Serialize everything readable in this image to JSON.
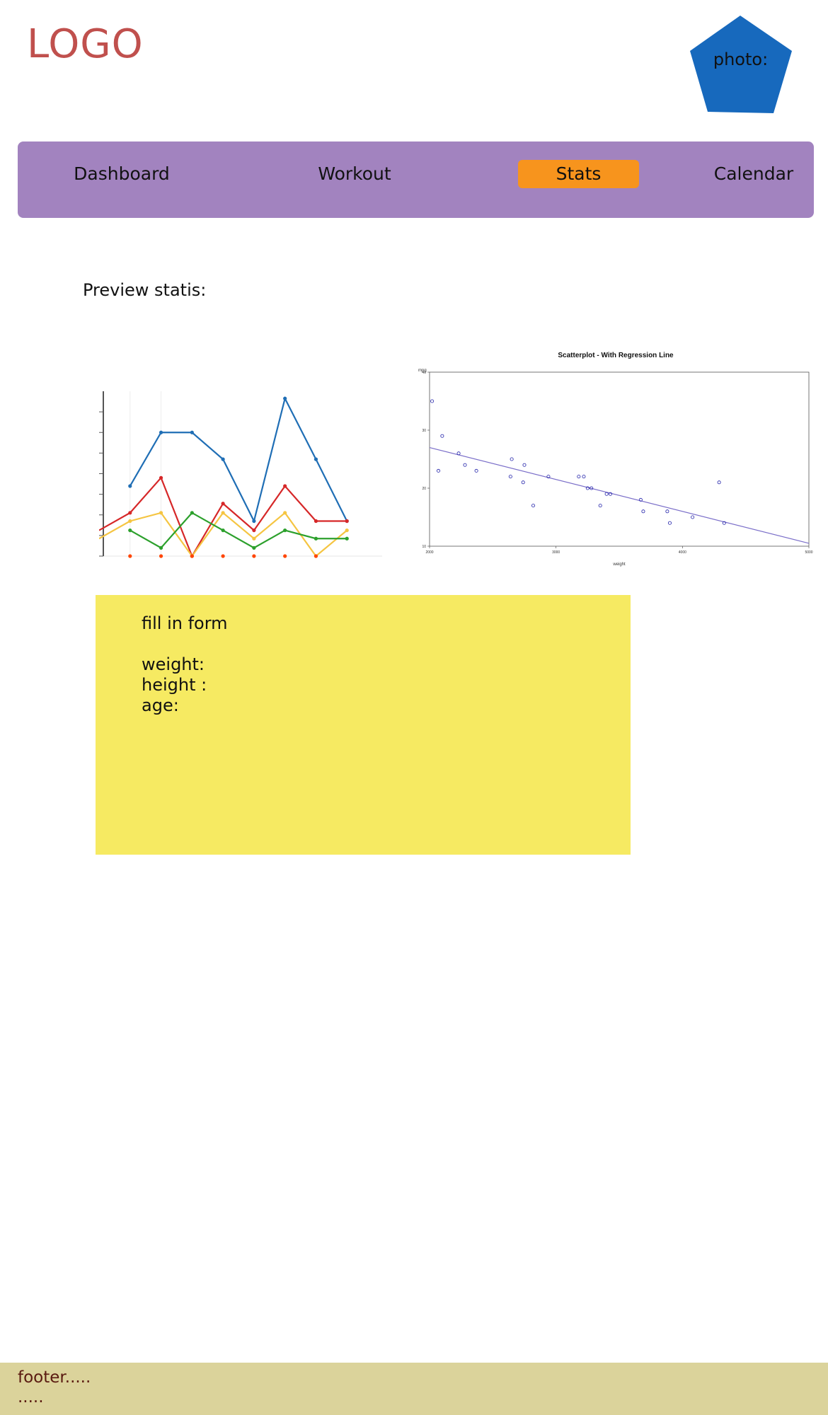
{
  "header": {
    "logo": "LOGO",
    "photo_label": "photo:"
  },
  "nav": {
    "items": [
      {
        "label": "Dashboard",
        "active": false
      },
      {
        "label": "Workout",
        "active": false
      },
      {
        "label": "Stats",
        "active": true
      },
      {
        "label": "Calendar",
        "active": false
      }
    ]
  },
  "main": {
    "preview_title": "Preview  statis:"
  },
  "chart_data": [
    {
      "type": "line",
      "title": "",
      "xlabel": "",
      "ylabel": "",
      "ylim": [
        0,
        16
      ],
      "yticks": [
        "0",
        "2",
        "4",
        "6",
        "8",
        "10",
        "12",
        "14"
      ],
      "x": [
        0,
        1,
        2,
        3,
        4,
        5,
        6,
        7,
        8,
        9
      ],
      "grid": false,
      "series": [
        {
          "color": "#1f6eb5",
          "values": [
            null,
            6.8,
            12,
            12,
            9.4,
            3.4,
            15.3,
            9.4,
            3.4,
            null
          ]
        },
        {
          "color": "#d62728",
          "values": [
            2.5,
            4.2,
            7.6,
            0,
            5.1,
            2.5,
            6.8,
            3.4,
            3.4,
            null
          ]
        },
        {
          "color": "#f5c542",
          "values": [
            1.7,
            3.4,
            4.2,
            0,
            4.2,
            1.7,
            4.2,
            0,
            2.5,
            null
          ]
        },
        {
          "color": "#2ca02c",
          "values": [
            null,
            2.5,
            0.8,
            4.2,
            2.5,
            0.8,
            2.5,
            1.7,
            1.7,
            null
          ]
        },
        {
          "color": "#ff4500",
          "values": [
            null,
            0,
            0,
            0,
            0,
            0,
            0,
            0,
            null,
            null
          ]
        }
      ]
    },
    {
      "type": "scatter",
      "title": "Scatterplot - With Regression Line",
      "xlabel": "weight",
      "ylabel": "mpg",
      "xlim": [
        2000,
        5000
      ],
      "ylim": [
        10,
        40
      ],
      "xticks": [
        "2000",
        "3000",
        "4000",
        "5000"
      ],
      "yticks": [
        "10",
        "20",
        "30",
        "40"
      ],
      "point_color": "#2222aa",
      "regression": {
        "x": [
          2000,
          5000
        ],
        "y": [
          27,
          10.5
        ],
        "color": "#7b6fc9"
      },
      "points": [
        [
          2020,
          35
        ],
        [
          2070,
          23
        ],
        [
          2100,
          29
        ],
        [
          2230,
          26
        ],
        [
          2280,
          24
        ],
        [
          2370,
          23
        ],
        [
          2650,
          25
        ],
        [
          2640,
          22
        ],
        [
          2750,
          24
        ],
        [
          2740,
          21
        ],
        [
          2820,
          17
        ],
        [
          2940,
          22
        ],
        [
          3180,
          22
        ],
        [
          3220,
          22
        ],
        [
          3250,
          20
        ],
        [
          3280,
          20
        ],
        [
          3350,
          17
        ],
        [
          3400,
          19
        ],
        [
          3430,
          19
        ],
        [
          3670,
          18
        ],
        [
          3690,
          16
        ],
        [
          3880,
          16
        ],
        [
          3900,
          14
        ],
        [
          4080,
          15
        ],
        [
          4290,
          21
        ],
        [
          4330,
          14
        ]
      ]
    }
  ],
  "form": {
    "title": "fill in form",
    "fields": [
      {
        "label": "weight:"
      },
      {
        "label": "height :"
      },
      {
        "label": "age:"
      }
    ]
  },
  "footer": {
    "line1": "footer.....",
    "line2": "....."
  }
}
